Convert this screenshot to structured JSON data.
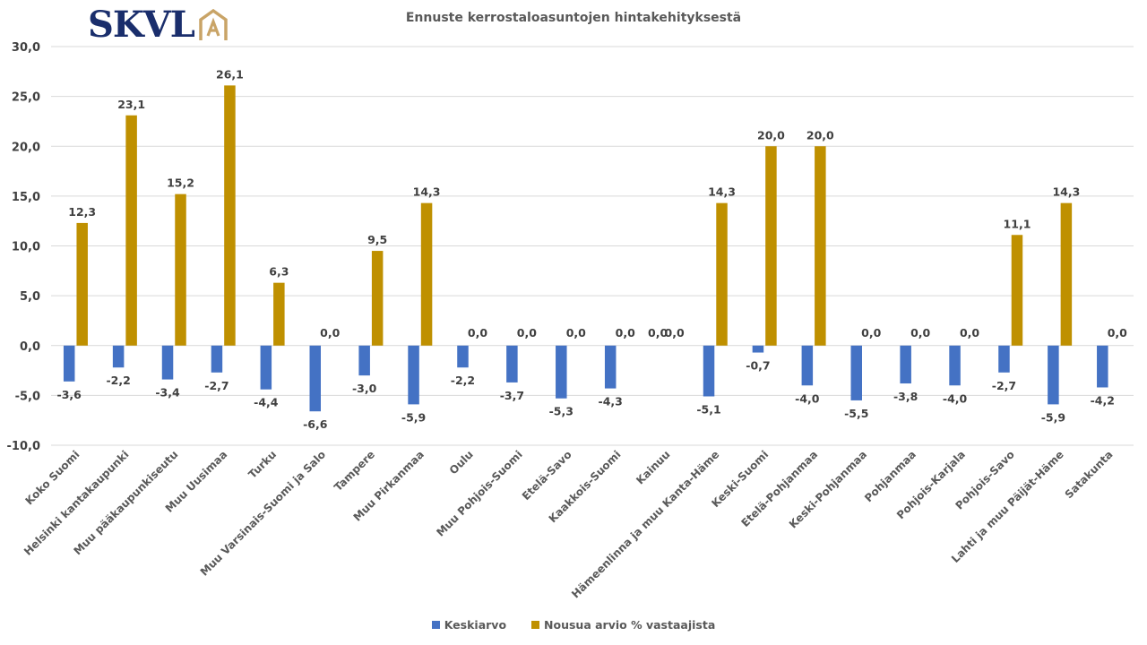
{
  "logo": {
    "text": "SKVL",
    "mark": "A",
    "icon": "house-a-logo-icon"
  },
  "colors": {
    "series1": "#4472c4",
    "series2": "#bf9000",
    "grid": "#d9d9d9",
    "text": "#404040",
    "logo_blue": "#1a2e6c",
    "logo_gold": "#c9a467"
  },
  "chart_data": {
    "type": "bar",
    "title": "Ennuste kerrostaloasuntojen hintakehityksestä",
    "xlabel": "",
    "ylabel": "",
    "ylim": [
      -10,
      30
    ],
    "yticks": [
      30,
      25,
      20,
      15,
      10,
      5,
      0,
      -5,
      -10
    ],
    "ytick_labels": [
      "30,0",
      "25,0",
      "20,0",
      "15,0",
      "10,0",
      "5,0",
      "0,0",
      "-5,0",
      "-10,0"
    ],
    "grid": true,
    "legend_position": "bottom",
    "categories": [
      "Koko Suomi",
      "Helsinki kantakaupunki",
      "Muu pääkaupunkiseutu",
      "Muu Uusimaa",
      "Turku",
      "Muu Varsinais-Suomi ja Salo",
      "Tampere",
      "Muu Pirkanmaa",
      "Oulu",
      "Muu Pohjois-Suomi",
      "Etelä-Savo",
      "Kaakkois-Suomi",
      "Kainuu",
      "Hämeenlinna ja muu Kanta-Häme",
      "Keski-Suomi",
      "Etelä-Pohjanmaa",
      "Keski-Pohjanmaa",
      "Pohjanmaa",
      "Pohjois-Karjala",
      "Pohjois-Savo",
      "Lahti ja muu Päijät-Häme",
      "Satakunta"
    ],
    "series": [
      {
        "name": "Keskiarvo",
        "values": [
          -3.6,
          -2.2,
          -3.4,
          -2.7,
          -4.4,
          -6.6,
          -3.0,
          -5.9,
          -2.2,
          -3.7,
          -5.3,
          -4.3,
          0.0,
          -5.1,
          -0.7,
          -4.0,
          -5.5,
          -3.8,
          -4.0,
          -2.7,
          -5.9,
          -4.2
        ]
      },
      {
        "name": "Nousua arvio % vastaajista",
        "values": [
          12.3,
          23.1,
          15.2,
          26.1,
          6.3,
          0.0,
          9.5,
          14.3,
          0.0,
          0.0,
          0.0,
          0.0,
          0.0,
          14.3,
          20.0,
          20.0,
          0.0,
          0.0,
          0.0,
          11.1,
          14.3,
          0.0
        ]
      }
    ]
  }
}
